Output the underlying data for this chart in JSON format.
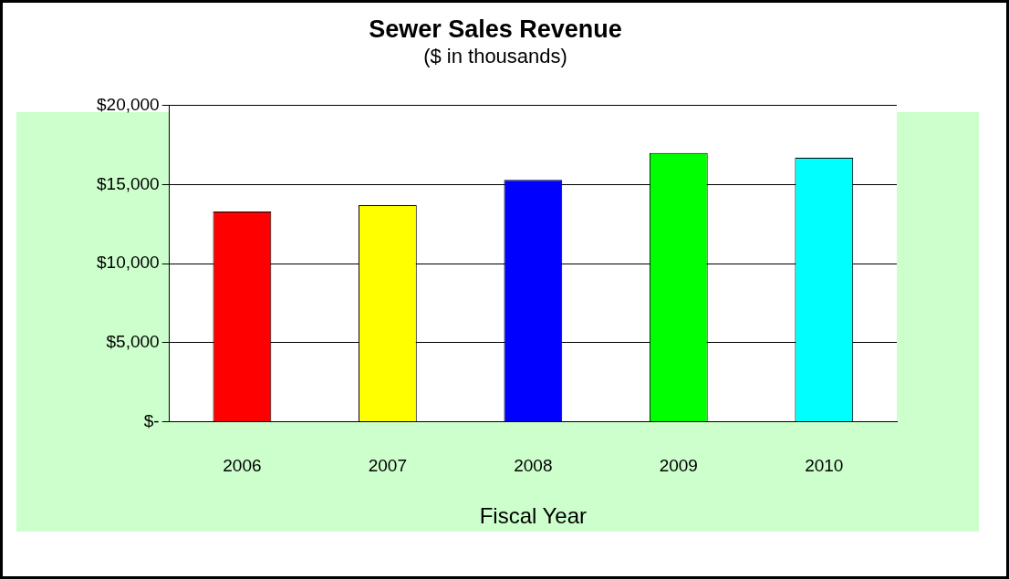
{
  "chart_data": {
    "type": "bar",
    "title": "Sewer Sales Revenue",
    "subtitle": "($ in thousands)",
    "xlabel": "Fiscal Year",
    "categories": [
      "2006",
      "2007",
      "2008",
      "2009",
      "2010"
    ],
    "values": [
      13300,
      13700,
      15300,
      17000,
      16700
    ],
    "colors": [
      "#ff0000",
      "#ffff00",
      "#0000ff",
      "#00ff00",
      "#00ffff"
    ],
    "ylim": [
      0,
      20000
    ],
    "yticks": [
      {
        "value": 0,
        "label": "$-"
      },
      {
        "value": 5000,
        "label": "$5,000"
      },
      {
        "value": 10000,
        "label": "$10,000"
      },
      {
        "value": 15000,
        "label": "$15,000"
      },
      {
        "value": 20000,
        "label": "$20,000"
      }
    ],
    "grid": "y",
    "legend": false
  }
}
